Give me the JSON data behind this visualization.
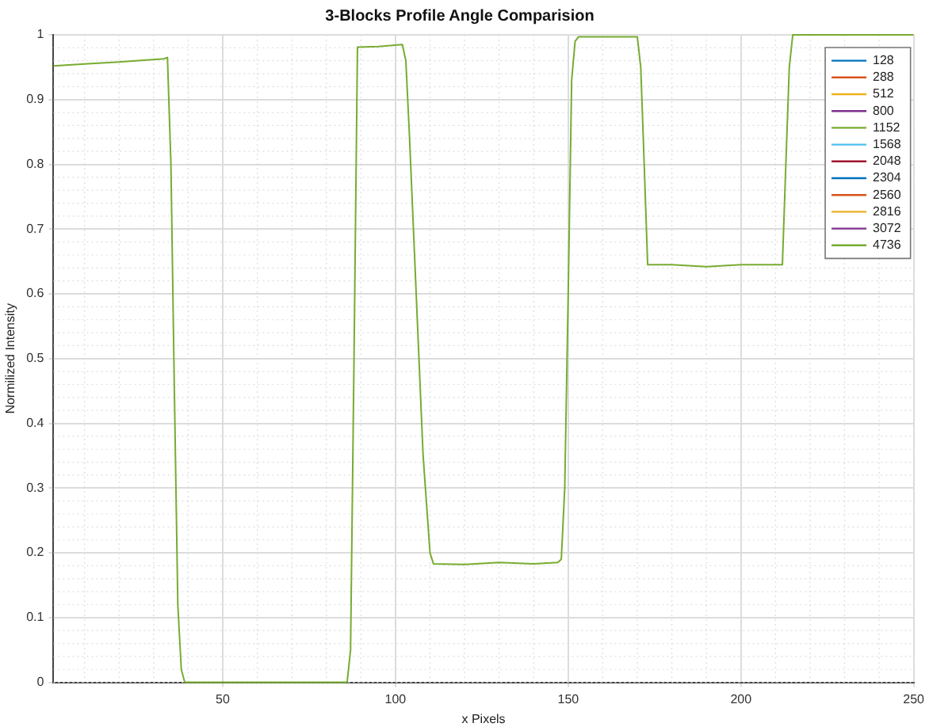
{
  "chart_data": {
    "type": "line",
    "title": "3-Blocks Profile Angle Comparision",
    "xlabel": "x Pixels",
    "ylabel": "Normilized Intensity",
    "x": [
      1,
      10,
      20,
      33,
      34,
      35,
      36,
      37,
      38,
      39,
      60,
      86,
      87,
      88,
      89,
      95,
      102,
      103,
      104,
      106,
      108,
      110,
      111,
      120,
      130,
      140,
      147,
      148,
      149,
      150,
      151,
      152,
      153,
      160,
      170,
      171,
      172,
      173,
      180,
      190,
      200,
      212,
      213,
      214,
      215,
      230,
      250
    ],
    "series": [
      {
        "name": "128",
        "color": "#0072bd",
        "values": [
          null,
          null,
          null,
          null,
          null,
          null,
          null,
          null,
          null,
          null,
          null,
          null,
          null,
          null,
          null,
          null,
          null,
          null,
          null,
          null,
          null,
          null,
          null,
          null,
          null,
          null,
          null,
          null,
          null,
          null,
          null,
          null,
          null,
          null,
          null,
          null,
          null,
          null,
          null,
          null,
          null,
          null,
          null,
          null,
          null,
          null,
          null
        ]
      },
      {
        "name": "288",
        "color": "#d95319",
        "values": [
          null,
          null,
          null,
          null,
          null,
          null,
          null,
          null,
          null,
          null,
          null,
          null,
          null,
          null,
          null,
          null,
          null,
          null,
          null,
          null,
          null,
          null,
          null,
          null,
          null,
          null,
          null,
          null,
          null,
          null,
          null,
          null,
          null,
          null,
          null,
          null,
          null,
          null,
          null,
          null,
          null,
          null,
          null,
          null,
          null,
          null,
          null
        ]
      },
      {
        "name": "512",
        "color": "#edb120",
        "values": [
          null,
          null,
          null,
          null,
          null,
          null,
          null,
          null,
          null,
          null,
          null,
          null,
          null,
          null,
          null,
          null,
          null,
          null,
          null,
          null,
          null,
          null,
          null,
          null,
          null,
          null,
          null,
          null,
          null,
          null,
          null,
          null,
          null,
          null,
          null,
          null,
          null,
          null,
          null,
          null,
          null,
          null,
          null,
          null,
          null,
          null,
          null
        ]
      },
      {
        "name": "800",
        "color": "#7e2f8e",
        "values": [
          null,
          null,
          null,
          null,
          null,
          null,
          null,
          null,
          null,
          null,
          null,
          null,
          null,
          null,
          null,
          null,
          null,
          null,
          null,
          null,
          null,
          null,
          null,
          null,
          null,
          null,
          null,
          null,
          null,
          null,
          null,
          null,
          null,
          null,
          null,
          null,
          null,
          null,
          null,
          null,
          null,
          null,
          null,
          null,
          null,
          null,
          null
        ]
      },
      {
        "name": "1152",
        "color": "#77ac30",
        "values": [
          null,
          null,
          null,
          null,
          null,
          null,
          null,
          null,
          null,
          null,
          null,
          null,
          null,
          null,
          null,
          null,
          null,
          null,
          null,
          null,
          null,
          null,
          null,
          null,
          null,
          null,
          null,
          null,
          null,
          null,
          null,
          null,
          null,
          null,
          null,
          null,
          null,
          null,
          null,
          null,
          null,
          null,
          null,
          null,
          null,
          null,
          null
        ]
      },
      {
        "name": "1568",
        "color": "#4dbeee",
        "values": [
          null,
          null,
          null,
          null,
          null,
          null,
          null,
          null,
          null,
          null,
          null,
          null,
          null,
          null,
          null,
          null,
          null,
          null,
          null,
          null,
          null,
          null,
          null,
          null,
          null,
          null,
          null,
          null,
          null,
          null,
          null,
          null,
          null,
          null,
          null,
          null,
          null,
          null,
          null,
          null,
          null,
          null,
          null,
          null,
          null,
          null,
          null
        ]
      },
      {
        "name": "2048",
        "color": "#a2142f",
        "values": [
          null,
          null,
          null,
          null,
          null,
          null,
          null,
          null,
          null,
          null,
          null,
          null,
          null,
          null,
          null,
          null,
          null,
          null,
          null,
          null,
          null,
          null,
          null,
          null,
          null,
          null,
          null,
          null,
          null,
          null,
          null,
          null,
          null,
          null,
          null,
          null,
          null,
          null,
          null,
          null,
          null,
          null,
          null,
          null,
          null,
          null,
          null
        ]
      },
      {
        "name": "2304",
        "color": "#0072bd",
        "values": [
          null,
          null,
          null,
          null,
          null,
          null,
          null,
          null,
          null,
          null,
          null,
          null,
          null,
          null,
          null,
          null,
          null,
          null,
          null,
          null,
          null,
          null,
          null,
          null,
          null,
          null,
          null,
          null,
          null,
          null,
          null,
          null,
          null,
          null,
          null,
          null,
          null,
          null,
          null,
          null,
          null,
          null,
          null,
          null,
          null,
          null,
          null
        ]
      },
      {
        "name": "2560",
        "color": "#d95319",
        "values": [
          null,
          null,
          null,
          null,
          null,
          null,
          null,
          null,
          null,
          null,
          null,
          null,
          null,
          null,
          null,
          null,
          null,
          null,
          null,
          null,
          null,
          null,
          null,
          null,
          null,
          null,
          null,
          null,
          null,
          null,
          null,
          null,
          null,
          null,
          null,
          null,
          null,
          null,
          null,
          null,
          null,
          null,
          null,
          null,
          null,
          null,
          null
        ]
      },
      {
        "name": "2816",
        "color": "#edb120",
        "values": [
          null,
          null,
          null,
          null,
          null,
          null,
          null,
          null,
          null,
          null,
          null,
          null,
          null,
          null,
          null,
          null,
          null,
          null,
          null,
          null,
          null,
          null,
          null,
          null,
          null,
          null,
          null,
          null,
          null,
          null,
          null,
          null,
          null,
          null,
          null,
          null,
          null,
          null,
          null,
          null,
          null,
          null,
          null,
          null,
          null,
          null,
          null
        ]
      },
      {
        "name": "3072",
        "color": "#7e2f8e",
        "values": [
          null,
          null,
          null,
          null,
          null,
          null,
          null,
          null,
          null,
          null,
          null,
          null,
          null,
          null,
          null,
          null,
          null,
          null,
          null,
          null,
          null,
          null,
          null,
          null,
          null,
          null,
          null,
          null,
          null,
          null,
          null,
          null,
          null,
          null,
          null,
          null,
          null,
          null,
          null,
          null,
          null,
          null,
          null,
          null,
          null,
          null,
          null
        ]
      },
      {
        "name": "4736",
        "color": "#77ac30",
        "values": [
          0.952,
          0.955,
          0.958,
          0.963,
          0.965,
          0.8,
          0.45,
          0.12,
          0.02,
          0,
          0,
          0,
          0.05,
          0.5,
          0.981,
          0.982,
          0.985,
          0.96,
          0.85,
          0.6,
          0.35,
          0.2,
          0.183,
          0.182,
          0.185,
          0.183,
          0.185,
          0.19,
          0.3,
          0.6,
          0.93,
          0.99,
          0.997,
          0.997,
          0.997,
          0.95,
          0.8,
          0.645,
          0.645,
          0.642,
          0.645,
          0.645,
          0.8,
          0.95,
          1,
          1,
          1
        ]
      }
    ],
    "xlim": [
      1,
      250
    ],
    "xticks": [
      50,
      100,
      150,
      200,
      250
    ],
    "ylim": [
      0,
      1
    ],
    "yticks": [
      0,
      0.1,
      0.2,
      0.3,
      0.4,
      0.5,
      0.6,
      0.7,
      0.8,
      0.9,
      1
    ],
    "grid": true,
    "legend": "top right"
  }
}
